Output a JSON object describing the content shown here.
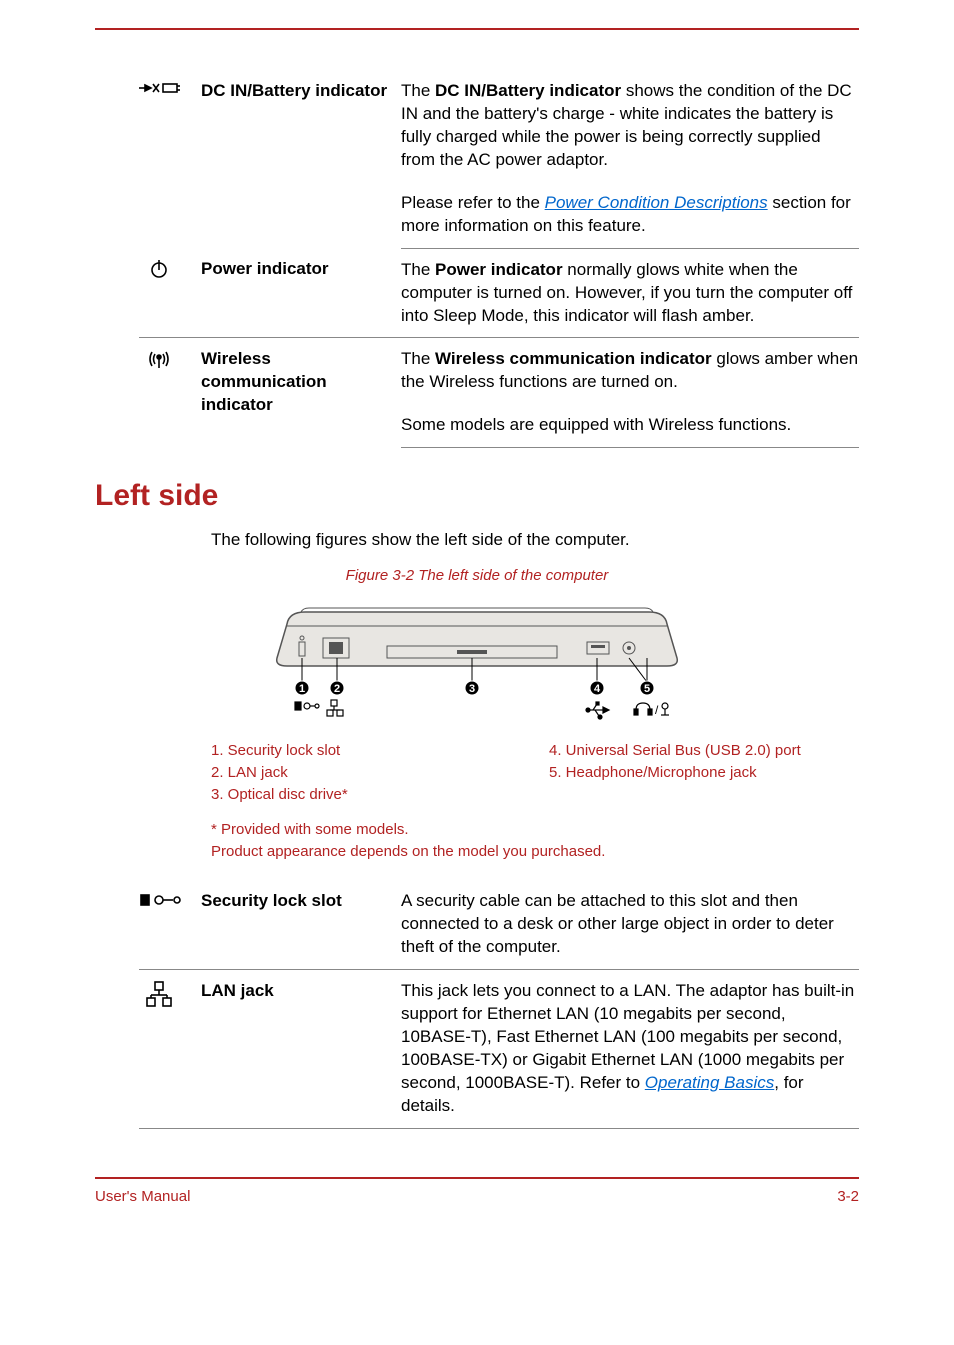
{
  "colors": {
    "accent": "#b22222",
    "link": "#0066cc",
    "text": "#000000",
    "rule": "#888888",
    "bg": "#ffffff"
  },
  "indicators": [
    {
      "icon": "dc-in-battery",
      "label": "DC IN/Battery indicator",
      "desc_html": "The <span class='bold'>DC IN/Battery indicator</span> shows the condition of the DC IN and the battery's charge - white indicates the battery is fully charged while the power is being correctly supplied from the AC power adaptor.",
      "desc2_pre": "Please refer to the ",
      "desc2_link": "Power Condition Descriptions",
      "desc2_post": " section for more information on this feature."
    },
    {
      "icon": "power",
      "label": "Power indicator",
      "desc_html": "The <span class='bold'>Power indicator</span> normally glows white when the computer is turned on. However, if you turn the computer off into Sleep Mode, this indicator will flash amber."
    },
    {
      "icon": "wireless",
      "label": "Wireless communication indicator",
      "desc_html": "The <span class='bold'>Wireless communication indicator</span> glows amber when the Wireless functions are turned on.",
      "desc2_plain": "Some models are equipped with Wireless functions."
    }
  ],
  "section_title": "Left side",
  "section_intro": "The following figures show the left side of the computer.",
  "figure_caption": "Figure 3-2 The left side of the computer",
  "figure": {
    "outline_color": "#555555",
    "fill_color": "#e8e6e2",
    "callout_bg": "#000000",
    "callout_fg": "#ffffff",
    "callouts": [
      1,
      2,
      3,
      4,
      5
    ]
  },
  "callouts_left": [
    "1. Security lock slot",
    "2. LAN jack",
    "3. Optical disc drive*"
  ],
  "callouts_right": [
    "4. Universal Serial Bus (USB 2.0) port",
    "5. Headphone/Microphone jack"
  ],
  "notes": [
    "* Provided with some models.",
    "Product appearance depends on the model you purchased."
  ],
  "ports": [
    {
      "icon": "lock-slot",
      "label": "Security lock slot",
      "desc_plain": "A security cable can be attached to this slot and then connected to a desk or other large object in order to deter theft of the computer."
    },
    {
      "icon": "lan",
      "label": "LAN jack",
      "desc_pre": "This jack lets you connect to a LAN. The adaptor has built-in support for Ethernet LAN (10 megabits per second, 10BASE-T), Fast Ethernet LAN (100 megabits per second, 100BASE-TX) or Gigabit Ethernet LAN (1000 megabits per second, 1000BASE-T). Refer to ",
      "desc_link": "Operating Basics",
      "desc_post": ", for details."
    }
  ],
  "footer_left": "User's Manual",
  "footer_right": "3-2"
}
